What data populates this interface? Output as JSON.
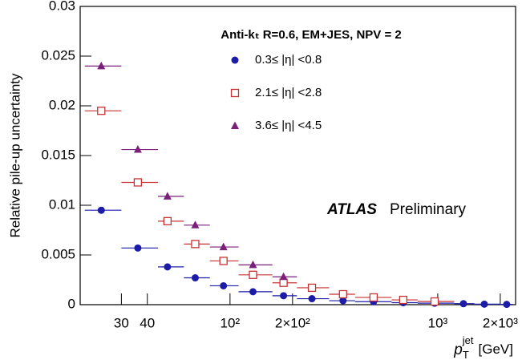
{
  "chart_data": {
    "type": "scatter",
    "ylabel": "Relative pile-up uncertainty",
    "xlabel": {
      "symbol": "p",
      "sub": "T",
      "sup": "jet",
      "unit": "[GeV]"
    },
    "header": "Anti-kₜ R=0.6, EM+JES, NPV = 2",
    "annotation": {
      "bold": "ATLAS",
      "normal": "Preliminary"
    },
    "xscale": "log",
    "xlim": [
      19,
      2370
    ],
    "ylim": [
      0,
      0.03
    ],
    "xticks": [
      30,
      40,
      {
        "value": 100,
        "label": "10²"
      },
      {
        "value": 200,
        "label": "2×10²"
      },
      {
        "value": 1000,
        "label": "10³"
      },
      {
        "value": 2000,
        "label": "2×10³"
      }
    ],
    "yticks": [
      0,
      0.005,
      0.01,
      0.015,
      0.02,
      0.025,
      0.03
    ],
    "bin_edges": [
      20,
      30,
      45,
      60,
      80,
      110,
      160,
      210,
      300,
      400,
      600,
      800,
      1200,
      1500,
      2000,
      2300
    ],
    "x": [
      24,
      36,
      50,
      68,
      93,
      129,
      181,
      248,
      350,
      491,
      682,
      966,
      1330,
      1676,
      2148
    ],
    "series": [
      {
        "name": "0.3≤ |η| <0.8",
        "color": "#1c1ca8",
        "marker": "circle",
        "values": [
          0.0095,
          0.0057,
          0.0038,
          0.0027,
          0.0019,
          0.0013,
          0.0009,
          0.0006,
          0.0004,
          0.0003,
          0.0002,
          0.00015,
          0.0001,
          5e-05,
          3e-05
        ]
      },
      {
        "name": "2.1≤ |η| <2.8",
        "color": "#c83232",
        "marker": "open-square",
        "values": [
          0.0195,
          0.0123,
          0.0084,
          0.0061,
          0.0044,
          0.003,
          0.0022,
          0.0017,
          0.00105,
          0.00073,
          0.00048,
          0.00032
        ]
      },
      {
        "name": "3.6≤ |η| <4.5",
        "color": "#7a1f7a",
        "marker": "triangle",
        "values": [
          0.024,
          0.0156,
          0.0109,
          0.008,
          0.0058,
          0.004,
          0.0028
        ]
      }
    ]
  }
}
